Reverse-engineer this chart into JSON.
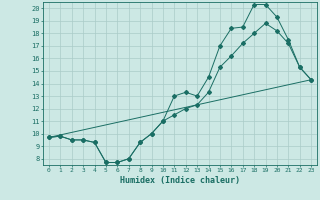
{
  "xlabel": "Humidex (Indice chaleur)",
  "ylabel": "",
  "bg_color": "#cce8e4",
  "line_color": "#1a6e64",
  "grid_color": "#aaccc8",
  "xlim": [
    -0.5,
    23.5
  ],
  "ylim": [
    7.5,
    20.5
  ],
  "xticks": [
    0,
    1,
    2,
    3,
    4,
    5,
    6,
    7,
    8,
    9,
    10,
    11,
    12,
    13,
    14,
    15,
    16,
    17,
    18,
    19,
    20,
    21,
    22,
    23
  ],
  "yticks": [
    8,
    9,
    10,
    11,
    12,
    13,
    14,
    15,
    16,
    17,
    18,
    19,
    20
  ],
  "line1_x": [
    0,
    1,
    2,
    3,
    4,
    5,
    6,
    7,
    8,
    9,
    10,
    11,
    12,
    13,
    14,
    15,
    16,
    17,
    18,
    19,
    20,
    21,
    22,
    23
  ],
  "line1_y": [
    9.7,
    9.8,
    9.5,
    9.5,
    9.3,
    7.7,
    7.7,
    8.0,
    9.3,
    10.0,
    11.0,
    13.0,
    13.3,
    13.0,
    14.5,
    17.0,
    18.4,
    18.5,
    20.3,
    20.3,
    19.3,
    17.5,
    15.3,
    14.3
  ],
  "line2_x": [
    0,
    1,
    2,
    3,
    4,
    5,
    6,
    7,
    8,
    9,
    10,
    11,
    12,
    13,
    14,
    15,
    16,
    17,
    18,
    19,
    20,
    21,
    22,
    23
  ],
  "line2_y": [
    9.7,
    9.8,
    9.5,
    9.5,
    9.3,
    7.7,
    7.7,
    8.0,
    9.3,
    10.0,
    11.0,
    11.5,
    12.0,
    12.3,
    13.3,
    15.3,
    16.2,
    17.2,
    18.0,
    18.8,
    18.2,
    17.2,
    15.3,
    14.3
  ],
  "line3_x": [
    0,
    23
  ],
  "line3_y": [
    9.7,
    14.3
  ]
}
